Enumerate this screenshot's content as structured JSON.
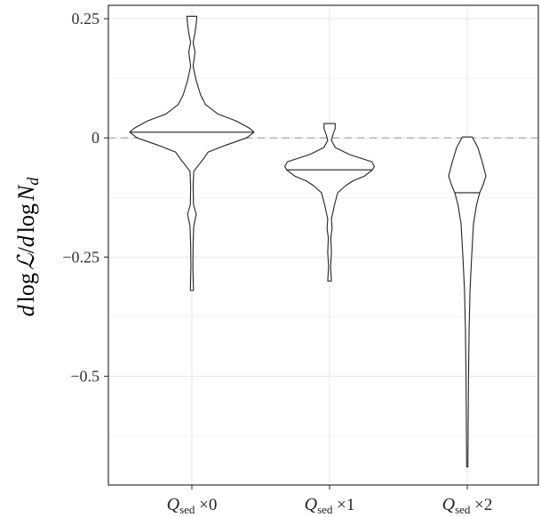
{
  "chart_data": {
    "type": "violin",
    "ylabel": "d log ℒ / d log N_d",
    "ylim": [
      -0.69,
      0.25
    ],
    "yticks": [
      0.25,
      0,
      -0.25,
      -0.5
    ],
    "ytick_labels": [
      "0.25",
      "0",
      "−0.25",
      "−0.5"
    ],
    "reference_line": {
      "y": 0,
      "style": "dashed",
      "color": "#aaaaaa"
    },
    "grid": true,
    "categories": [
      {
        "prefix": "Q",
        "subscript": "sed",
        "suffix": " ×0"
      },
      {
        "prefix": "Q",
        "subscript": "sed",
        "suffix": " ×1"
      },
      {
        "prefix": "Q",
        "subscript": "sed",
        "suffix": " ×2"
      }
    ],
    "violins": [
      {
        "median": 0.012,
        "profile": [
          [
            0.255,
            0.08
          ],
          [
            0.24,
            0.07
          ],
          [
            0.22,
            0.05
          ],
          [
            0.2,
            0.02
          ],
          [
            0.18,
            0.05
          ],
          [
            0.15,
            0.02
          ],
          [
            0.12,
            0.07
          ],
          [
            0.09,
            0.14
          ],
          [
            0.07,
            0.22
          ],
          [
            0.05,
            0.42
          ],
          [
            0.035,
            0.72
          ],
          [
            0.02,
            0.93
          ],
          [
            0.012,
            1.0
          ],
          [
            0.0,
            0.88
          ],
          [
            -0.015,
            0.55
          ],
          [
            -0.03,
            0.26
          ],
          [
            -0.045,
            0.18
          ],
          [
            -0.055,
            0.12
          ],
          [
            -0.07,
            0.03
          ],
          [
            -0.1,
            0.02
          ],
          [
            -0.14,
            0.025
          ],
          [
            -0.16,
            0.07
          ],
          [
            -0.185,
            0.03
          ],
          [
            -0.22,
            0.02
          ],
          [
            -0.27,
            0.015
          ],
          [
            -0.32,
            0.025
          ]
        ]
      },
      {
        "median": -0.067,
        "profile": [
          [
            0.03,
            0.09
          ],
          [
            0.02,
            0.09
          ],
          [
            0.005,
            0.05
          ],
          [
            -0.005,
            0.03
          ],
          [
            -0.02,
            0.09
          ],
          [
            -0.035,
            0.32
          ],
          [
            -0.05,
            0.68
          ],
          [
            -0.06,
            0.72
          ],
          [
            -0.067,
            0.69
          ],
          [
            -0.08,
            0.56
          ],
          [
            -0.09,
            0.38
          ],
          [
            -0.1,
            0.26
          ],
          [
            -0.115,
            0.13
          ],
          [
            -0.14,
            0.08
          ],
          [
            -0.17,
            0.03
          ],
          [
            -0.19,
            0.04
          ],
          [
            -0.21,
            0.02
          ],
          [
            -0.24,
            0.03
          ],
          [
            -0.27,
            0.015
          ],
          [
            -0.3,
            0.03
          ]
        ]
      },
      {
        "median": -0.115,
        "profile": [
          [
            0.002,
            0.08
          ],
          [
            -0.02,
            0.17
          ],
          [
            -0.05,
            0.24
          ],
          [
            -0.08,
            0.3
          ],
          [
            -0.1,
            0.25
          ],
          [
            -0.115,
            0.2
          ],
          [
            -0.14,
            0.15
          ],
          [
            -0.18,
            0.1
          ],
          [
            -0.25,
            0.07
          ],
          [
            -0.32,
            0.045
          ],
          [
            -0.4,
            0.03
          ],
          [
            -0.5,
            0.02
          ],
          [
            -0.6,
            0.015
          ],
          [
            -0.69,
            0.01
          ]
        ]
      }
    ]
  }
}
